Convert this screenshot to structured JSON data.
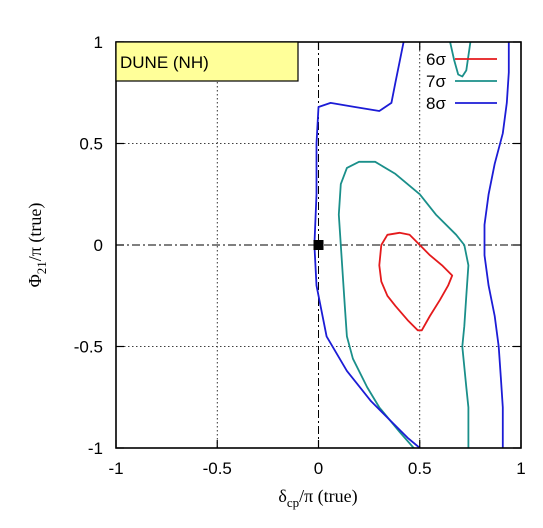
{
  "chart_data": {
    "type": "line",
    "title": "",
    "annotation": "DUNE (NH)",
    "colors": {
      "annotation_fill": "#ffff99",
      "frame": "#000000"
    },
    "xlabel": {
      "main": "δ",
      "sub": "cp",
      "rest": "/π (true)"
    },
    "ylabel": {
      "main": "Φ",
      "sub": "21",
      "rest": "/π (true)"
    },
    "xlim": [
      -1,
      1
    ],
    "ylim": [
      -1,
      1
    ],
    "xticks": [
      -1,
      -0.5,
      0,
      0.5,
      1
    ],
    "xtick_labels": [
      "-1",
      "-0.5",
      "0",
      "0.5",
      "1"
    ],
    "yticks": [
      -1,
      -0.5,
      0,
      0.5,
      1
    ],
    "ytick_labels": [
      "-1",
      "-0.5",
      "0",
      "0.5",
      "1"
    ],
    "grid": true,
    "legend_position": "top-right",
    "true_point": {
      "x": 0,
      "y": 0,
      "marker": "square"
    },
    "series": [
      {
        "name": "6σ",
        "color": "#e41a1c",
        "closed": true,
        "points": [
          [
            0.3,
            -0.1
          ],
          [
            0.31,
            0.0
          ],
          [
            0.34,
            0.05
          ],
          [
            0.4,
            0.06
          ],
          [
            0.45,
            0.05
          ],
          [
            0.5,
            0.0
          ],
          [
            0.55,
            -0.05
          ],
          [
            0.61,
            -0.1
          ],
          [
            0.66,
            -0.15
          ],
          [
            0.64,
            -0.2
          ],
          [
            0.6,
            -0.27
          ],
          [
            0.55,
            -0.35
          ],
          [
            0.51,
            -0.42
          ],
          [
            0.49,
            -0.42
          ],
          [
            0.44,
            -0.37
          ],
          [
            0.38,
            -0.3
          ],
          [
            0.34,
            -0.25
          ],
          [
            0.31,
            -0.18
          ]
        ]
      },
      {
        "name": "7σ",
        "color": "#1a8f8a",
        "closed": false,
        "points": [
          [
            0.47,
            -1.0
          ],
          [
            0.4,
            -0.92
          ],
          [
            0.3,
            -0.8
          ],
          [
            0.24,
            -0.7
          ],
          [
            0.17,
            -0.56
          ],
          [
            0.14,
            -0.45
          ],
          [
            0.13,
            -0.3
          ],
          [
            0.12,
            -0.15
          ],
          [
            0.11,
            0.0
          ],
          [
            0.1,
            0.15
          ],
          [
            0.11,
            0.3
          ],
          [
            0.14,
            0.38
          ],
          [
            0.2,
            0.41
          ],
          [
            0.28,
            0.41
          ],
          [
            0.38,
            0.35
          ],
          [
            0.5,
            0.25
          ],
          [
            0.58,
            0.15
          ],
          [
            0.68,
            0.05
          ],
          [
            0.72,
            0.0
          ],
          [
            0.74,
            -0.1
          ],
          [
            0.73,
            -0.25
          ],
          [
            0.72,
            -0.4
          ],
          [
            0.71,
            -0.5
          ],
          [
            0.72,
            -0.6
          ],
          [
            0.73,
            -0.7
          ],
          [
            0.74,
            -0.8
          ],
          [
            0.74,
            -1.0
          ]
        ]
      },
      {
        "name": "7σ",
        "color": "#1a8f8a",
        "closed": false,
        "points": [
          [
            0.65,
            1.0
          ],
          [
            0.67,
            0.91
          ],
          [
            0.69,
            0.84
          ],
          [
            0.71,
            0.83
          ],
          [
            0.73,
            0.86
          ],
          [
            0.75,
            1.0
          ]
        ]
      },
      {
        "name": "8σ",
        "color": "#1c1cd6",
        "closed": false,
        "points": [
          [
            0.5,
            -1.0
          ],
          [
            0.44,
            -0.95
          ],
          [
            0.36,
            -0.87
          ],
          [
            0.26,
            -0.77
          ],
          [
            0.14,
            -0.62
          ],
          [
            0.04,
            -0.45
          ],
          [
            -0.01,
            -0.2
          ],
          [
            -0.02,
            0.0
          ],
          [
            -0.01,
            0.25
          ],
          [
            -0.01,
            0.5
          ],
          [
            0.0,
            0.68
          ],
          [
            0.06,
            0.7
          ],
          [
            0.18,
            0.68
          ],
          [
            0.3,
            0.66
          ],
          [
            0.36,
            0.7
          ],
          [
            0.38,
            0.8
          ],
          [
            0.4,
            0.9
          ],
          [
            0.42,
            1.0
          ]
        ]
      },
      {
        "name": "8σ",
        "color": "#1c1cd6",
        "closed": false,
        "points": [
          [
            0.94,
            1.0
          ],
          [
            0.94,
            0.85
          ],
          [
            0.93,
            0.7
          ],
          [
            0.91,
            0.55
          ],
          [
            0.87,
            0.4
          ],
          [
            0.84,
            0.25
          ],
          [
            0.82,
            0.1
          ],
          [
            0.82,
            -0.05
          ],
          [
            0.84,
            -0.2
          ],
          [
            0.87,
            -0.35
          ],
          [
            0.89,
            -0.5
          ],
          [
            0.9,
            -0.65
          ],
          [
            0.91,
            -0.8
          ],
          [
            0.91,
            -1.0
          ]
        ]
      }
    ],
    "legend": [
      {
        "label": "6σ",
        "color": "#e41a1c"
      },
      {
        "label": "7σ",
        "color": "#1a8f8a"
      },
      {
        "label": "8σ",
        "color": "#1c1cd6"
      }
    ]
  }
}
